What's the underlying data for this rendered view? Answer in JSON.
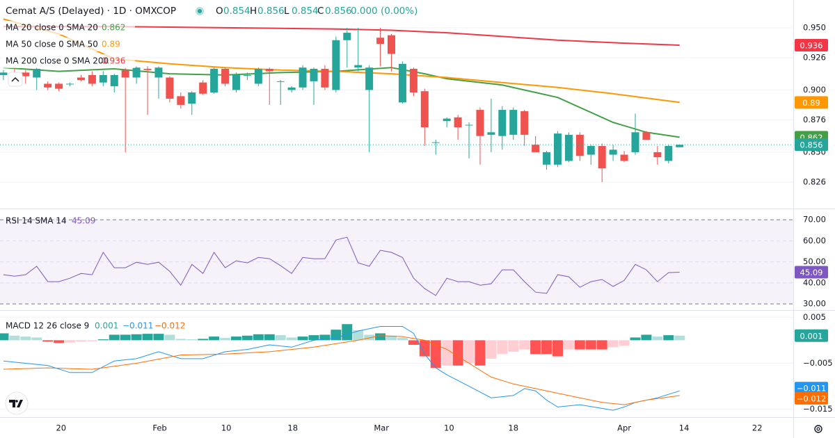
{
  "chart_data": [
    {
      "type": "candlestick",
      "title": "Cemat A/S (Delayed) · 1D · OMXCOP",
      "ohlc_labels": [
        "O",
        "H",
        "L",
        "C"
      ],
      "change": "0.000 (0.00%)",
      "x": [
        0,
        1,
        2,
        3,
        4,
        5,
        6,
        7,
        8,
        9,
        10,
        11,
        12,
        13,
        14,
        15,
        16,
        17,
        18,
        19,
        20,
        21,
        22,
        23,
        24,
        25,
        26,
        27,
        28,
        29,
        30,
        31,
        32,
        33,
        34,
        35,
        36,
        37,
        38,
        39,
        40,
        41,
        42,
        43,
        44,
        45,
        46,
        47,
        48,
        49,
        50,
        51,
        52,
        53,
        54,
        55,
        56,
        57,
        58,
        59,
        60,
        61
      ],
      "open": [
        0.912,
        0.913,
        0.914,
        0.91,
        0.905,
        0.905,
        0.905,
        0.91,
        0.912,
        0.906,
        0.903,
        0.916,
        0.91,
        0.917,
        0.91,
        0.91,
        0.895,
        0.889,
        0.906,
        0.898,
        0.917,
        0.9,
        0.912,
        0.905,
        0.917,
        0.907,
        0.9,
        0.902,
        0.907,
        0.917,
        0.9,
        0.94,
        0.918,
        0.9,
        0.942,
        0.944,
        0.89,
        0.917,
        0.899,
        0.858,
        0.875,
        0.878,
        0.872,
        0.884,
        0.864,
        0.863,
        0.864,
        0.883,
        0.856,
        0.84,
        0.84,
        0.843,
        0.864,
        0.848,
        0.855,
        0.848,
        0.848,
        0.85,
        0.866,
        0.85,
        0.843,
        0.854
      ],
      "high": [
        0.916,
        0.918,
        0.916,
        0.918,
        0.907,
        0.906,
        0.906,
        0.912,
        0.915,
        0.915,
        0.913,
        0.918,
        0.919,
        0.919,
        0.919,
        0.911,
        0.898,
        0.899,
        0.908,
        0.918,
        0.918,
        0.914,
        0.914,
        0.918,
        0.918,
        0.908,
        0.903,
        0.92,
        0.918,
        0.92,
        0.943,
        0.95,
        0.95,
        0.92,
        0.95,
        0.945,
        0.923,
        0.918,
        0.901,
        0.86,
        0.878,
        0.88,
        0.874,
        0.886,
        0.893,
        0.887,
        0.886,
        0.884,
        0.863,
        0.851,
        0.867,
        0.866,
        0.866,
        0.856,
        0.857,
        0.856,
        0.851,
        0.881,
        0.867,
        0.855,
        0.856,
        0.856
      ],
      "low": [
        0.908,
        0.905,
        0.905,
        0.9,
        0.9,
        0.899,
        0.903,
        0.907,
        0.903,
        0.903,
        0.898,
        0.85,
        0.905,
        0.88,
        0.893,
        0.89,
        0.885,
        0.88,
        0.896,
        0.897,
        0.903,
        0.898,
        0.908,
        0.903,
        0.888,
        0.888,
        0.898,
        0.9,
        0.888,
        0.9,
        0.898,
        0.918,
        0.915,
        0.85,
        0.919,
        0.915,
        0.889,
        0.895,
        0.855,
        0.848,
        0.87,
        0.86,
        0.845,
        0.84,
        0.85,
        0.852,
        0.86,
        0.855,
        0.85,
        0.836,
        0.838,
        0.842,
        0.843,
        0.84,
        0.826,
        0.843,
        0.842,
        0.848,
        0.86,
        0.84,
        0.841,
        0.854
      ],
      "close": [
        0.914,
        0.912,
        0.911,
        0.917,
        0.902,
        0.901,
        0.905,
        0.908,
        0.905,
        0.912,
        0.912,
        0.91,
        0.918,
        0.916,
        0.918,
        0.893,
        0.888,
        0.898,
        0.897,
        0.917,
        0.905,
        0.912,
        0.912,
        0.917,
        0.915,
        0.907,
        0.902,
        0.918,
        0.917,
        0.902,
        0.94,
        0.946,
        0.92,
        0.918,
        0.937,
        0.929,
        0.921,
        0.898,
        0.87,
        0.858,
        0.877,
        0.87,
        0.872,
        0.863,
        0.866,
        0.884,
        0.884,
        0.864,
        0.85,
        0.85,
        0.865,
        0.864,
        0.847,
        0.855,
        0.837,
        0.852,
        0.843,
        0.866,
        0.86,
        0.846,
        0.855,
        0.856
      ],
      "up_color": "#26a69a",
      "down_color": "#ef5350",
      "series": [
        {
          "name": "MA 20 close 0 SMA 20",
          "color": "#43a047",
          "x": [
            0,
            5,
            10,
            15,
            20,
            25,
            30,
            35,
            38,
            40,
            45,
            50,
            55,
            58,
            61
          ],
          "values": [
            0.918,
            0.915,
            0.917,
            0.913,
            0.912,
            0.914,
            0.915,
            0.918,
            0.913,
            0.909,
            0.904,
            0.894,
            0.874,
            0.866,
            0.862
          ]
        },
        {
          "name": "MA 50 close 0 SMA 50",
          "color": "#ff9800",
          "x": [
            0,
            5,
            10,
            15,
            20,
            25,
            30,
            35,
            40,
            45,
            50,
            55,
            61
          ],
          "values": [
            0.957,
            0.945,
            0.925,
            0.921,
            0.918,
            0.916,
            0.915,
            0.913,
            0.91,
            0.906,
            0.902,
            0.897,
            0.89
          ]
        },
        {
          "name": "MA 200 close 0 SMA 200",
          "color": "#f23645",
          "x": [
            0,
            10,
            20,
            30,
            35,
            40,
            45,
            50,
            55,
            61
          ],
          "values": [
            0.951,
            0.951,
            0.95,
            0.949,
            0.948,
            0.946,
            0.943,
            0.94,
            0.938,
            0.936
          ]
        }
      ],
      "xlim": [
        -0.31,
        71.25
      ],
      "xticks": [
        {
          "value": 5.2,
          "label": "20"
        },
        {
          "value": 14.1,
          "label": "Feb"
        },
        {
          "value": 20.1,
          "label": "10"
        },
        {
          "value": 26.1,
          "label": "18"
        },
        {
          "value": 34.1,
          "label": "Mar"
        },
        {
          "value": 40.2,
          "label": "10"
        },
        {
          "value": 46.0,
          "label": "18"
        },
        {
          "value": 56.0,
          "label": "Apr"
        },
        {
          "value": 61.4,
          "label": "14"
        },
        {
          "value": 68.0,
          "label": "22"
        }
      ],
      "ylim": [
        0.8047,
        0.9723
      ],
      "yticks": [
        {
          "value": 0.95,
          "label": "0.950"
        },
        0.926,
        {
          "value": 0.9,
          "label": "0.900"
        },
        0.876,
        {
          "value": 0.85,
          "label": "0.850"
        },
        0.826
      ],
      "grid": true
    },
    {
      "type": "line",
      "title": "RSI 14 SMA 14",
      "color": "#7e57c2",
      "values": [
        43.9,
        43.2,
        43.9,
        47.9,
        40.6,
        40.6,
        42.2,
        44.5,
        43.9,
        54.5,
        47.2,
        47.2,
        49.8,
        48.8,
        49.8,
        45.5,
        38.9,
        48.8,
        44.5,
        54.5,
        47.2,
        50.5,
        49.5,
        52.1,
        51.5,
        48.2,
        44.5,
        52.1,
        51.5,
        51.5,
        60.4,
        61.7,
        49.5,
        47.9,
        55.5,
        54.5,
        52.1,
        42.2,
        37.3,
        34.0,
        42.2,
        40.6,
        40.6,
        38.9,
        39.6,
        46.2,
        46.2,
        40.6,
        35.6,
        35.0,
        43.9,
        42.9,
        37.9,
        40.6,
        41.6,
        38.3,
        41.2,
        48.8,
        46.2,
        40.6,
        44.9,
        45.09
      ],
      "ylim": [
        27.4,
        75.0
      ],
      "yticks": [
        {
          "value": 70,
          "label": "70.00"
        },
        {
          "value": 60,
          "label": "60.00"
        },
        {
          "value": 50,
          "label": "50.00"
        },
        {
          "value": 40,
          "label": "40.00"
        },
        {
          "value": 30,
          "label": "30.00"
        }
      ]
    },
    {
      "type": "macd",
      "title": "MACD 12 26 close 9",
      "histogram": [
        0.0015,
        0.001,
        0.0008,
        0.0006,
        -0.0003,
        -0.0006,
        -0.0005,
        -0.0003,
        -0.0002,
        0.0002,
        0.0012,
        0.0012,
        0.0013,
        0.0014,
        0.0014,
        0.0012,
        0.0003,
        0.0002,
        0.0003,
        0.0008,
        0.0005,
        0.0008,
        0.001,
        0.0013,
        0.0013,
        0.0011,
        0.0006,
        0.0008,
        0.0011,
        0.0012,
        0.0023,
        0.0035,
        0.0022,
        0.0012,
        0.0015,
        0.001,
        0.0005,
        -0.001,
        -0.0035,
        -0.006,
        -0.0055,
        -0.0055,
        -0.005,
        -0.0055,
        -0.004,
        -0.003,
        -0.0025,
        -0.002,
        -0.003,
        -0.003,
        -0.0035,
        -0.002,
        -0.002,
        -0.002,
        -0.002,
        -0.0015,
        -0.0012,
        0.0006,
        0.0012,
        0.0008,
        0.0011,
        0.001
      ],
      "histogram_colors": [
        "#26a69a",
        "#b2dfdb",
        "#ff5252",
        "#ffcdd2"
      ],
      "series": [
        {
          "color": "#2196f3",
          "x": [
            0,
            4,
            6,
            8,
            10,
            12,
            14,
            16,
            18,
            20,
            22,
            24,
            26,
            28,
            30,
            32,
            34,
            36,
            37,
            38,
            39,
            40,
            42,
            44,
            46,
            47,
            48,
            49,
            50,
            52,
            54,
            55,
            56,
            57,
            59,
            61
          ],
          "values": [
            -0.0045,
            -0.0055,
            -0.007,
            -0.007,
            -0.0045,
            -0.004,
            -0.0025,
            -0.004,
            -0.004,
            -0.0025,
            -0.002,
            -0.001,
            -0.0015,
            0,
            0.0005,
            0.002,
            0.003,
            0.003,
            0.0015,
            -0.003,
            -0.006,
            -0.0075,
            -0.01,
            -0.0125,
            -0.012,
            -0.0105,
            -0.011,
            -0.013,
            -0.0145,
            -0.014,
            -0.0148,
            -0.0152,
            -0.0145,
            -0.0135,
            -0.0125,
            -0.011
          ],
          "value_labels": [
            null,
            null,
            null,
            null,
            null,
            null,
            null,
            null,
            null,
            null,
            null,
            null,
            null,
            null,
            null,
            null,
            null,
            null,
            null,
            null,
            null,
            null,
            null,
            null,
            null,
            null,
            null,
            null,
            null,
            null,
            null,
            null,
            null,
            null,
            null,
            "−0.011"
          ]
        },
        {
          "color": "#ff6d00",
          "x": [
            0,
            4,
            8,
            12,
            16,
            20,
            24,
            28,
            32,
            34,
            36,
            38,
            40,
            42,
            44,
            46,
            48,
            50,
            52,
            54,
            56,
            58,
            61
          ],
          "values": [
            -0.0063,
            -0.006,
            -0.0063,
            -0.005,
            -0.0032,
            -0.003,
            -0.0025,
            -0.0015,
            0,
            0.001,
            0.0008,
            0,
            -0.002,
            -0.005,
            -0.008,
            -0.0095,
            -0.0105,
            -0.0115,
            -0.0125,
            -0.0135,
            -0.014,
            -0.013,
            -0.012
          ],
          "value_labels": [
            null,
            null,
            null,
            null,
            null,
            null,
            null,
            null,
            null,
            null,
            null,
            null,
            null,
            null,
            null,
            null,
            null,
            null,
            null,
            null,
            null,
            null,
            "−0.012"
          ]
        }
      ],
      "ylim": [
        -0.0167,
        0.0064
      ],
      "yticks": [
        0.005,
        {
          "value": -0.005,
          "label": "−0.005"
        },
        {
          "value": -0.015,
          "label": "−0.015"
        }
      ]
    }
  ]
}
